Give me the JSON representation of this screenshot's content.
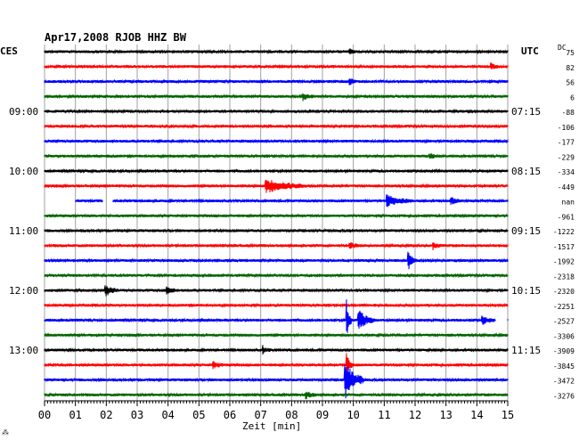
{
  "header": {
    "title": "Apr17,2008   RJOB HHZ BW",
    "left_tz": "CES",
    "right_tz": "UTC",
    "dc_label": "DC"
  },
  "chart_data": {
    "type": "line",
    "xlabel": "Zeit [min]",
    "xlim": [
      0,
      15
    ],
    "x_ticks": [
      "00",
      "01",
      "02",
      "03",
      "04",
      "05",
      "06",
      "07",
      "08",
      "09",
      "10",
      "11",
      "12",
      "13",
      "14",
      "15"
    ],
    "trace_colors": [
      "#000000",
      "#ff0000",
      "#0000ff",
      "#006400"
    ],
    "left_time_labels": [
      {
        "trace": 4,
        "text": "09:00"
      },
      {
        "trace": 8,
        "text": "10:00"
      },
      {
        "trace": 12,
        "text": "11:00"
      },
      {
        "trace": 16,
        "text": "12:00"
      },
      {
        "trace": 20,
        "text": "13:00"
      }
    ],
    "right_time_labels": [
      {
        "trace": 4,
        "text": "07:15"
      },
      {
        "trace": 8,
        "text": "08:15"
      },
      {
        "trace": 12,
        "text": "09:15"
      },
      {
        "trace": 16,
        "text": "10:15"
      },
      {
        "trace": 20,
        "text": "11:15"
      }
    ],
    "dc_offsets": [
      "75",
      "82",
      "56",
      "6",
      "-88",
      "-106",
      "-177",
      "-229",
      "-334",
      "-449",
      "nan",
      "-961",
      "-1222",
      "-1517",
      "-1992",
      "-2318",
      "-2320",
      "-2251",
      "-2527",
      "-3306",
      "-3909",
      "-3845",
      "-3472",
      "-3276"
    ],
    "events": [
      {
        "trace": 0,
        "minute": 9.9,
        "width": 0.15,
        "amp": 2
      },
      {
        "trace": 1,
        "minute": 14.5,
        "width": 0.2,
        "amp": 2
      },
      {
        "trace": 2,
        "minute": 9.9,
        "width": 0.2,
        "amp": 3
      },
      {
        "trace": 3,
        "minute": 8.4,
        "width": 0.3,
        "amp": 3
      },
      {
        "trace": 7,
        "minute": 12.5,
        "width": 0.3,
        "amp": 2
      },
      {
        "trace": 9,
        "minute": 7.2,
        "width": 1.3,
        "amp": 7
      },
      {
        "trace": 10,
        "minute": 11.1,
        "width": 0.8,
        "amp": 6
      },
      {
        "trace": 10,
        "minute": 13.2,
        "width": 0.3,
        "amp": 3
      },
      {
        "trace": 13,
        "minute": 9.9,
        "width": 0.3,
        "amp": 3
      },
      {
        "trace": 13,
        "minute": 12.6,
        "width": 0.3,
        "amp": 3
      },
      {
        "trace": 14,
        "minute": 11.8,
        "width": 0.25,
        "amp": 8
      },
      {
        "trace": 16,
        "minute": 2.0,
        "width": 0.4,
        "amp": 5
      },
      {
        "trace": 16,
        "minute": 4.0,
        "width": 0.3,
        "amp": 3
      },
      {
        "trace": 18,
        "minute": 9.8,
        "width": 0.15,
        "amp": 18
      },
      {
        "trace": 18,
        "minute": 10.2,
        "width": 0.5,
        "amp": 10
      },
      {
        "trace": 18,
        "minute": 14.2,
        "width": 0.4,
        "amp": 4
      },
      {
        "trace": 20,
        "minute": 7.1,
        "width": 0.2,
        "amp": 3
      },
      {
        "trace": 21,
        "minute": 5.5,
        "width": 0.3,
        "amp": 3
      },
      {
        "trace": 21,
        "minute": 9.8,
        "width": 0.2,
        "amp": 10
      },
      {
        "trace": 22,
        "minute": 9.75,
        "width": 0.6,
        "amp": 20
      },
      {
        "trace": 23,
        "minute": 8.5,
        "width": 0.3,
        "amp": 3
      }
    ],
    "gaps": [
      {
        "trace": 10,
        "from": 0,
        "to": 1.0
      },
      {
        "trace": 10,
        "from": 1.9,
        "to": 2.2
      },
      {
        "trace": 18,
        "from": 14.6,
        "to": 15
      }
    ]
  }
}
